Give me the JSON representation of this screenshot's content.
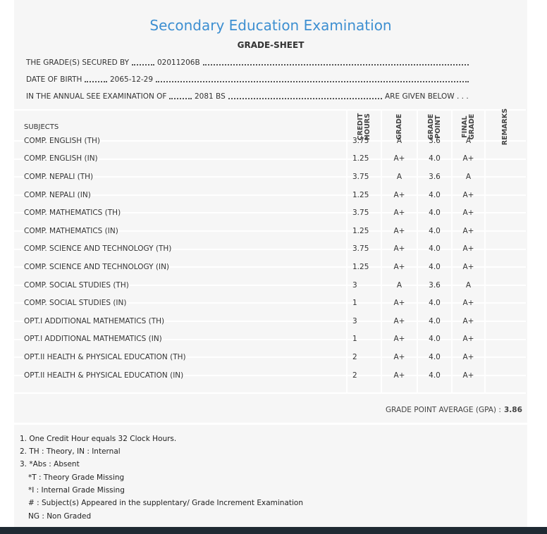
{
  "header": {
    "title": "Secondary Education Examination",
    "subtitle": "GRADE-SHEET"
  },
  "info": [
    {
      "label": "THE GRADE(S) SECURED BY",
      "value": "02011206B"
    },
    {
      "label": "DATE OF BIRTH",
      "value": "2065-12-29"
    },
    {
      "label": "IN THE ANNUAL SEE EXAMINATION OF",
      "value": "2081 BS",
      "suffix": "ARE GIVEN BELOW . . ."
    }
  ],
  "table": {
    "columns": [
      "SUBJECTS",
      "CREDIT HOURS",
      "GRADE",
      "GRADE POINT",
      "FINAL GRADE",
      "REMARKS"
    ],
    "rows": [
      [
        "COMP. ENGLISH (TH)",
        "3.75",
        "A",
        "3.6",
        "A"
      ],
      [
        "COMP. ENGLISH (IN)",
        "1.25",
        "A+",
        "4.0",
        "A+"
      ],
      [
        "COMP. NEPALI (TH)",
        "3.75",
        "A",
        "3.6",
        "A"
      ],
      [
        "COMP. NEPALI (IN)",
        "1.25",
        "A+",
        "4.0",
        "A+"
      ],
      [
        "COMP. MATHEMATICS (TH)",
        "3.75",
        "A+",
        "4.0",
        "A+"
      ],
      [
        "COMP. MATHEMATICS (IN)",
        "1.25",
        "A+",
        "4.0",
        "A+"
      ],
      [
        "COMP. SCIENCE AND TECHNOLOGY (TH)",
        "3.75",
        "A+",
        "4.0",
        "A+"
      ],
      [
        "COMP. SCIENCE AND TECHNOLOGY (IN)",
        "1.25",
        "A+",
        "4.0",
        "A+"
      ],
      [
        "COMP. SOCIAL STUDIES (TH)",
        "3",
        "A",
        "3.6",
        "A"
      ],
      [
        "COMP. SOCIAL STUDIES (IN)",
        "1",
        "A+",
        "4.0",
        "A+"
      ],
      [
        "OPT.I ADDITIONAL MATHEMATICS (TH)",
        "3",
        "A+",
        "4.0",
        "A+"
      ],
      [
        "OPT.I ADDITIONAL MATHEMATICS (IN)",
        "1",
        "A+",
        "4.0",
        "A+"
      ],
      [
        "OPT.II HEALTH & PHYSICAL EDUCATION (TH)",
        "2",
        "A+",
        "4.0",
        "A+"
      ],
      [
        "OPT.II HEALTH & PHYSICAL EDUCATION (IN)",
        "2",
        "A+",
        "4.0",
        "A+"
      ]
    ]
  },
  "gpa": {
    "label": "GRADE POINT AVERAGE (GPA) :",
    "value": "3.86"
  },
  "notes": [
    "1. One Credit Hour equals 32 Clock Hours.",
    "2. TH : Theory, IN : Internal",
    "3. *Abs : Absent",
    "*T : Theory Grade Missing",
    "*I : Internal Grade Missing",
    "# : Subject(s) Appeared in the supplentary/ Grade Increment Examination",
    "NG : Non Graded"
  ]
}
